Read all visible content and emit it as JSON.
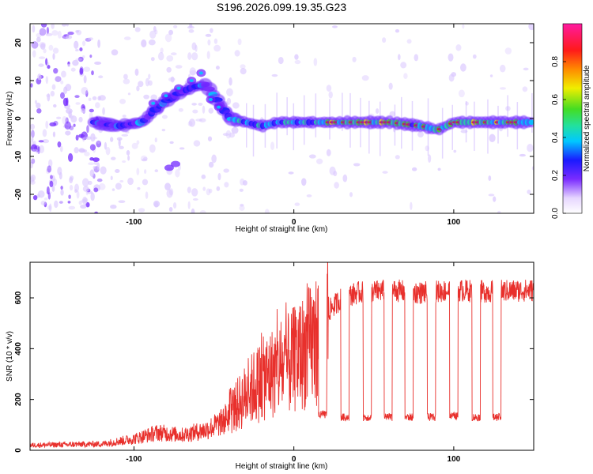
{
  "title": "S196.2026.099.19.35.G23",
  "colors": {
    "snr_line": "#e8302c",
    "spectral_low": "#6a1bff",
    "spectral_high": "#e8141e",
    "colorbar_stops": [
      "#ffffff",
      "#e6d6ff",
      "#7a2cff",
      "#1a1aff",
      "#00c8ff",
      "#22e0a0",
      "#44dd22",
      "#f0ee00",
      "#ff8a00",
      "#ff1a1a",
      "#ff1aa0"
    ]
  },
  "chart_data": [
    {
      "type": "heatmap",
      "name": "spectrogram",
      "xlabel": "Height of straight line (km)",
      "ylabel": "Frequency (Hz)",
      "xlim": [
        -165,
        150
      ],
      "ylim": [
        -25,
        25
      ],
      "xticks": [
        -100,
        0,
        100
      ],
      "yticks": [
        -20,
        -10,
        0,
        10,
        20
      ],
      "colorbar": {
        "label": "Normalized spectral amplitude",
        "range": [
          0,
          1
        ],
        "ticks": [
          "0.0",
          "0.2",
          "0.4",
          "0.6",
          "0.8"
        ]
      },
      "ridge": {
        "description_points_x": [
          -125,
          -110,
          -95,
          -85,
          -75,
          -65,
          -55,
          -45,
          -40,
          -30,
          -20,
          -10,
          0,
          20,
          40,
          60,
          80,
          90,
          100,
          120,
          140,
          150
        ],
        "description_points_f": [
          -1,
          -2,
          -1,
          3,
          6,
          8,
          9,
          3,
          0,
          -1,
          -2,
          -1,
          -1,
          -1,
          -1,
          -1,
          -2,
          -3,
          -1,
          -1,
          -1,
          -1
        ]
      }
    },
    {
      "type": "line",
      "name": "snr",
      "xlabel": "Height of straight line (km)",
      "ylabel": "SNR (10 * v/v)",
      "xlim": [
        -165,
        150
      ],
      "ylim": [
        0,
        740
      ],
      "xticks": [
        -100,
        0,
        100
      ],
      "yticks": [
        0,
        200,
        400,
        600
      ],
      "envelope": {
        "x": [
          -165,
          -120,
          -100,
          -85,
          -70,
          -55,
          -45,
          -35,
          -25,
          -15,
          -5,
          5,
          15,
          22,
          30,
          40,
          60,
          80,
          100,
          120,
          150
        ],
        "y": [
          20,
          25,
          45,
          70,
          60,
          80,
          110,
          180,
          250,
          300,
          330,
          380,
          440,
          550,
          600,
          620,
          630,
          620,
          630,
          625,
          630
        ]
      },
      "dropouts": {
        "x": [
          18,
          32,
          46,
          59,
          72,
          86,
          100,
          114,
          127
        ],
        "y": [
          140,
          130,
          130,
          130,
          130,
          130,
          135,
          130,
          130
        ]
      }
    }
  ]
}
